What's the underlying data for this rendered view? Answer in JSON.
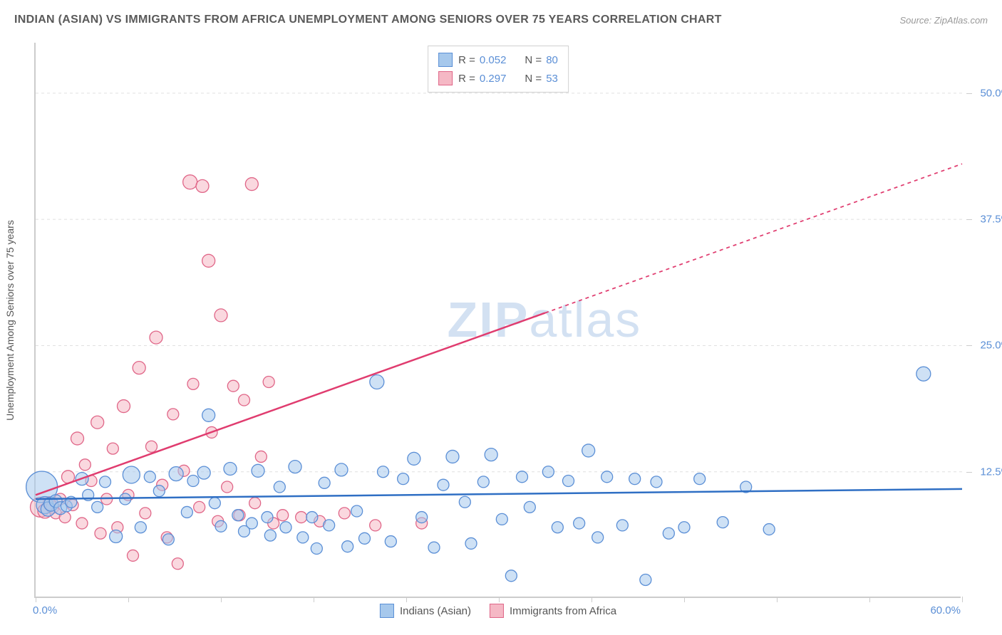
{
  "header": {
    "title": "INDIAN (ASIAN) VS IMMIGRANTS FROM AFRICA UNEMPLOYMENT AMONG SENIORS OVER 75 YEARS CORRELATION CHART",
    "source": "Source: ZipAtlas.com"
  },
  "chart": {
    "type": "scatter",
    "ylabel": "Unemployment Among Seniors over 75 years",
    "x_origin_label": "0.0%",
    "x_max_label": "60.0%",
    "xlim": [
      0,
      60
    ],
    "ylim": [
      0,
      55
    ],
    "ytick_positions": [
      12.5,
      25.0,
      37.5,
      50.0
    ],
    "ytick_labels": [
      "12.5%",
      "25.0%",
      "37.5%",
      "50.0%"
    ],
    "xtick_positions": [
      0,
      6,
      12,
      18,
      24,
      30,
      36,
      42,
      48,
      54,
      60
    ],
    "grid_color": "#e0e0e0",
    "axis_color": "#cccccc",
    "background_color": "#ffffff",
    "watermark": {
      "text_bold": "ZIP",
      "text_light": "atlas"
    }
  },
  "series": [
    {
      "id": "indians",
      "label": "Indians (Asian)",
      "R": "0.052",
      "N": "80",
      "fill_color": "#a6c8ec",
      "stroke_color": "#5b8fd6",
      "fill_opacity": 0.55,
      "line_color": "#2f6fc4",
      "line_width": 2.5,
      "marker_r_default": 9,
      "trend": {
        "x1": 0,
        "y1": 9.8,
        "x2": 60,
        "y2": 10.8,
        "dashed_from_x": 60
      },
      "points": [
        {
          "x": 0.4,
          "y": 11,
          "r": 22
        },
        {
          "x": 0.6,
          "y": 9.2,
          "r": 12
        },
        {
          "x": 0.8,
          "y": 8.8,
          "r": 10
        },
        {
          "x": 1.0,
          "y": 9.3,
          "r": 10
        },
        {
          "x": 1.3,
          "y": 9.6,
          "r": 9
        },
        {
          "x": 1.6,
          "y": 8.9,
          "r": 9
        },
        {
          "x": 2.0,
          "y": 9.1,
          "r": 8
        },
        {
          "x": 2.3,
          "y": 9.5,
          "r": 8
        },
        {
          "x": 3.0,
          "y": 11.8,
          "r": 9
        },
        {
          "x": 3.4,
          "y": 10.2,
          "r": 8
        },
        {
          "x": 4.0,
          "y": 9.0,
          "r": 8
        },
        {
          "x": 4.5,
          "y": 11.5,
          "r": 8
        },
        {
          "x": 5.2,
          "y": 6.1,
          "r": 9
        },
        {
          "x": 5.8,
          "y": 9.8,
          "r": 8
        },
        {
          "x": 6.2,
          "y": 12.2,
          "r": 12
        },
        {
          "x": 6.8,
          "y": 7.0,
          "r": 8
        },
        {
          "x": 7.4,
          "y": 12.0,
          "r": 8
        },
        {
          "x": 8.0,
          "y": 10.6,
          "r": 8
        },
        {
          "x": 8.6,
          "y": 5.8,
          "r": 8
        },
        {
          "x": 9.1,
          "y": 12.3,
          "r": 10
        },
        {
          "x": 9.8,
          "y": 8.5,
          "r": 8
        },
        {
          "x": 10.2,
          "y": 11.6,
          "r": 8
        },
        {
          "x": 10.9,
          "y": 12.4,
          "r": 9
        },
        {
          "x": 11.2,
          "y": 18.1,
          "r": 9
        },
        {
          "x": 11.6,
          "y": 9.4,
          "r": 8
        },
        {
          "x": 12.0,
          "y": 7.1,
          "r": 8
        },
        {
          "x": 12.6,
          "y": 12.8,
          "r": 9
        },
        {
          "x": 13.1,
          "y": 8.2,
          "r": 8
        },
        {
          "x": 13.5,
          "y": 6.6,
          "r": 8
        },
        {
          "x": 14.0,
          "y": 7.4,
          "r": 8
        },
        {
          "x": 14.4,
          "y": 12.6,
          "r": 9
        },
        {
          "x": 15.0,
          "y": 8.0,
          "r": 8
        },
        {
          "x": 15.2,
          "y": 6.2,
          "r": 8
        },
        {
          "x": 15.8,
          "y": 11.0,
          "r": 8
        },
        {
          "x": 16.2,
          "y": 7.0,
          "r": 8
        },
        {
          "x": 16.8,
          "y": 13.0,
          "r": 9
        },
        {
          "x": 17.3,
          "y": 6.0,
          "r": 8
        },
        {
          "x": 17.9,
          "y": 8.0,
          "r": 8
        },
        {
          "x": 18.2,
          "y": 4.9,
          "r": 8
        },
        {
          "x": 18.7,
          "y": 11.4,
          "r": 8
        },
        {
          "x": 19.0,
          "y": 7.2,
          "r": 8
        },
        {
          "x": 19.8,
          "y": 12.7,
          "r": 9
        },
        {
          "x": 20.2,
          "y": 5.1,
          "r": 8
        },
        {
          "x": 20.8,
          "y": 8.6,
          "r": 8
        },
        {
          "x": 21.3,
          "y": 5.9,
          "r": 8
        },
        {
          "x": 22.1,
          "y": 21.4,
          "r": 10
        },
        {
          "x": 22.5,
          "y": 12.5,
          "r": 8
        },
        {
          "x": 23.0,
          "y": 5.6,
          "r": 8
        },
        {
          "x": 23.8,
          "y": 11.8,
          "r": 8
        },
        {
          "x": 24.5,
          "y": 13.8,
          "r": 9
        },
        {
          "x": 25.0,
          "y": 8.0,
          "r": 8
        },
        {
          "x": 25.8,
          "y": 5.0,
          "r": 8
        },
        {
          "x": 26.4,
          "y": 11.2,
          "r": 8
        },
        {
          "x": 27.0,
          "y": 14.0,
          "r": 9
        },
        {
          "x": 27.8,
          "y": 9.5,
          "r": 8
        },
        {
          "x": 28.2,
          "y": 5.4,
          "r": 8
        },
        {
          "x": 29.0,
          "y": 11.5,
          "r": 8
        },
        {
          "x": 29.5,
          "y": 14.2,
          "r": 9
        },
        {
          "x": 30.2,
          "y": 7.8,
          "r": 8
        },
        {
          "x": 30.8,
          "y": 2.2,
          "r": 8
        },
        {
          "x": 31.5,
          "y": 12.0,
          "r": 8
        },
        {
          "x": 32.0,
          "y": 9.0,
          "r": 8
        },
        {
          "x": 33.2,
          "y": 12.5,
          "r": 8
        },
        {
          "x": 33.8,
          "y": 7.0,
          "r": 8
        },
        {
          "x": 34.5,
          "y": 11.6,
          "r": 8
        },
        {
          "x": 35.2,
          "y": 7.4,
          "r": 8
        },
        {
          "x": 35.8,
          "y": 14.6,
          "r": 9
        },
        {
          "x": 36.4,
          "y": 6.0,
          "r": 8
        },
        {
          "x": 37.0,
          "y": 12.0,
          "r": 8
        },
        {
          "x": 38.0,
          "y": 7.2,
          "r": 8
        },
        {
          "x": 38.8,
          "y": 11.8,
          "r": 8
        },
        {
          "x": 39.5,
          "y": 1.8,
          "r": 8
        },
        {
          "x": 40.2,
          "y": 11.5,
          "r": 8
        },
        {
          "x": 41.0,
          "y": 6.4,
          "r": 8
        },
        {
          "x": 42.0,
          "y": 7.0,
          "r": 8
        },
        {
          "x": 43.0,
          "y": 11.8,
          "r": 8
        },
        {
          "x": 44.5,
          "y": 7.5,
          "r": 8
        },
        {
          "x": 46.0,
          "y": 11.0,
          "r": 8
        },
        {
          "x": 47.5,
          "y": 6.8,
          "r": 8
        },
        {
          "x": 57.5,
          "y": 22.2,
          "r": 10
        }
      ]
    },
    {
      "id": "africa",
      "label": "Immigrants from Africa",
      "R": "0.297",
      "N": "53",
      "fill_color": "#f5b8c5",
      "stroke_color": "#e06688",
      "fill_opacity": 0.55,
      "line_color": "#e03c6f",
      "line_width": 2.5,
      "marker_r_default": 9,
      "trend": {
        "x1": 0,
        "y1": 10.2,
        "x2": 60,
        "y2": 43.0,
        "dashed_from_x": 33
      },
      "points": [
        {
          "x": 0.3,
          "y": 9.0,
          "r": 14
        },
        {
          "x": 0.6,
          "y": 8.6,
          "r": 10
        },
        {
          "x": 0.9,
          "y": 9.4,
          "r": 9
        },
        {
          "x": 1.1,
          "y": 9.0,
          "r": 9
        },
        {
          "x": 1.3,
          "y": 8.4,
          "r": 8
        },
        {
          "x": 1.6,
          "y": 9.8,
          "r": 8
        },
        {
          "x": 1.9,
          "y": 8.0,
          "r": 8
        },
        {
          "x": 2.1,
          "y": 12.0,
          "r": 9
        },
        {
          "x": 2.4,
          "y": 9.2,
          "r": 8
        },
        {
          "x": 2.7,
          "y": 15.8,
          "r": 9
        },
        {
          "x": 3.0,
          "y": 7.4,
          "r": 8
        },
        {
          "x": 3.2,
          "y": 13.2,
          "r": 8
        },
        {
          "x": 3.6,
          "y": 11.6,
          "r": 8
        },
        {
          "x": 4.0,
          "y": 17.4,
          "r": 9
        },
        {
          "x": 4.2,
          "y": 6.4,
          "r": 8
        },
        {
          "x": 4.6,
          "y": 9.8,
          "r": 8
        },
        {
          "x": 5.0,
          "y": 14.8,
          "r": 8
        },
        {
          "x": 5.3,
          "y": 7.0,
          "r": 8
        },
        {
          "x": 5.7,
          "y": 19.0,
          "r": 9
        },
        {
          "x": 6.0,
          "y": 10.2,
          "r": 8
        },
        {
          "x": 6.3,
          "y": 4.2,
          "r": 8
        },
        {
          "x": 6.7,
          "y": 22.8,
          "r": 9
        },
        {
          "x": 7.1,
          "y": 8.4,
          "r": 8
        },
        {
          "x": 7.5,
          "y": 15.0,
          "r": 8
        },
        {
          "x": 7.8,
          "y": 25.8,
          "r": 9
        },
        {
          "x": 8.2,
          "y": 11.2,
          "r": 8
        },
        {
          "x": 8.5,
          "y": 6.0,
          "r": 8
        },
        {
          "x": 8.9,
          "y": 18.2,
          "r": 8
        },
        {
          "x": 9.2,
          "y": 3.4,
          "r": 8
        },
        {
          "x": 9.6,
          "y": 12.6,
          "r": 8
        },
        {
          "x": 10.0,
          "y": 41.2,
          "r": 10
        },
        {
          "x": 10.2,
          "y": 21.2,
          "r": 8
        },
        {
          "x": 10.6,
          "y": 9.0,
          "r": 8
        },
        {
          "x": 10.8,
          "y": 40.8,
          "r": 9
        },
        {
          "x": 11.2,
          "y": 33.4,
          "r": 9
        },
        {
          "x": 11.4,
          "y": 16.4,
          "r": 8
        },
        {
          "x": 11.8,
          "y": 7.6,
          "r": 8
        },
        {
          "x": 12.0,
          "y": 28.0,
          "r": 9
        },
        {
          "x": 12.4,
          "y": 11.0,
          "r": 8
        },
        {
          "x": 12.8,
          "y": 21.0,
          "r": 8
        },
        {
          "x": 13.2,
          "y": 8.2,
          "r": 8
        },
        {
          "x": 13.5,
          "y": 19.6,
          "r": 8
        },
        {
          "x": 14.0,
          "y": 41.0,
          "r": 9
        },
        {
          "x": 14.2,
          "y": 9.4,
          "r": 8
        },
        {
          "x": 14.6,
          "y": 14.0,
          "r": 8
        },
        {
          "x": 15.1,
          "y": 21.4,
          "r": 8
        },
        {
          "x": 15.4,
          "y": 7.4,
          "r": 8
        },
        {
          "x": 16.0,
          "y": 8.2,
          "r": 8
        },
        {
          "x": 17.2,
          "y": 8.0,
          "r": 8
        },
        {
          "x": 18.4,
          "y": 7.6,
          "r": 8
        },
        {
          "x": 20.0,
          "y": 8.4,
          "r": 8
        },
        {
          "x": 22.0,
          "y": 7.2,
          "r": 8
        },
        {
          "x": 25.0,
          "y": 7.4,
          "r": 8
        }
      ]
    }
  ],
  "legend_top": {
    "rows": [
      {
        "swatch_fill": "#a6c8ec",
        "swatch_stroke": "#5b8fd6",
        "R": "0.052",
        "N": "80"
      },
      {
        "swatch_fill": "#f5b8c5",
        "swatch_stroke": "#e06688",
        "R": "0.297",
        "N": "53"
      }
    ]
  },
  "legend_bottom": {
    "items": [
      {
        "swatch_fill": "#a6c8ec",
        "swatch_stroke": "#5b8fd6",
        "label": "Indians (Asian)"
      },
      {
        "swatch_fill": "#f5b8c5",
        "swatch_stroke": "#e06688",
        "label": "Immigrants from Africa"
      }
    ]
  }
}
